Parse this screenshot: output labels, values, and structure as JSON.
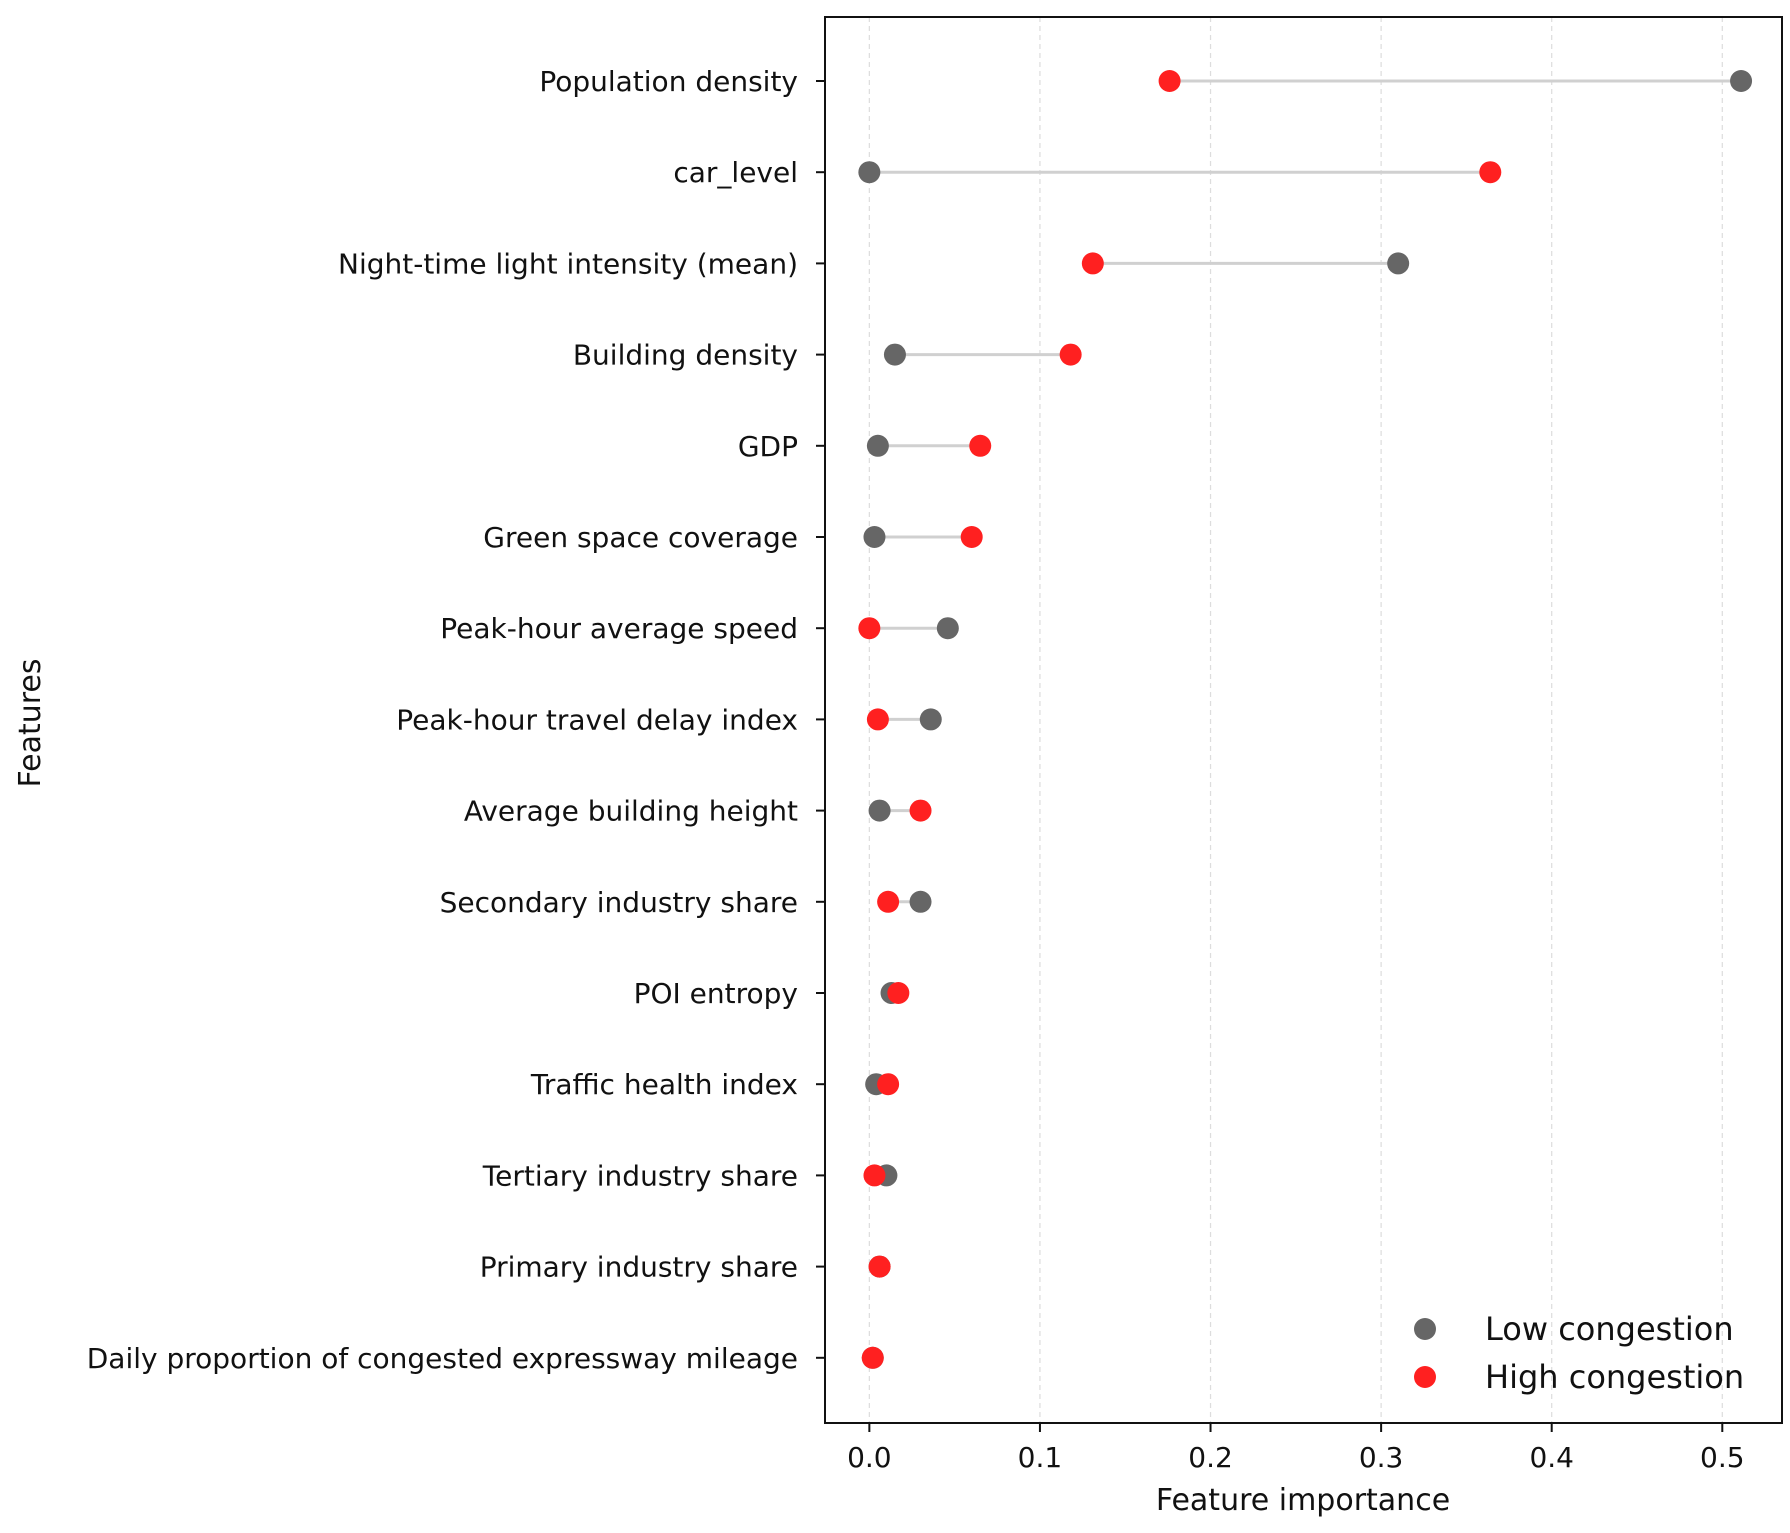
{
  "chart_data": {
    "type": "dumbbell",
    "title": "",
    "xlabel": "Feature importance",
    "ylabel": "Features",
    "xlim": [
      -0.026,
      0.535
    ],
    "xticks": [
      0.0,
      0.1,
      0.2,
      0.3,
      0.4,
      0.5
    ],
    "xtick_labels": [
      "0.0",
      "0.1",
      "0.2",
      "0.3",
      "0.4",
      "0.5"
    ],
    "grid": "vertical-dashed",
    "legend_position": "bottom-right",
    "categories": [
      "Population density",
      "car_level",
      "Night-time light intensity (mean)",
      "Building density",
      "GDP",
      "Green space coverage",
      "Peak-hour average speed",
      "Peak-hour travel delay index",
      "Average building height",
      "Secondary industry share",
      "POI entropy",
      "Traffic health index",
      "Tertiary industry share",
      "Primary industry share",
      "Daily proportion of congested expressway mileage"
    ],
    "series": [
      {
        "name": "Low congestion",
        "color": "#666666",
        "values": [
          0.511,
          0.0,
          0.31,
          0.015,
          0.005,
          0.003,
          0.046,
          0.036,
          0.006,
          0.03,
          0.013,
          0.004,
          0.01,
          0.006,
          0.002
        ]
      },
      {
        "name": "High congestion",
        "color": "#ff2020",
        "values": [
          0.176,
          0.364,
          0.131,
          0.118,
          0.065,
          0.06,
          0.0,
          0.005,
          0.03,
          0.011,
          0.017,
          0.011,
          0.003,
          0.006,
          0.002
        ]
      }
    ],
    "connector_color": "#d0d0d0"
  }
}
